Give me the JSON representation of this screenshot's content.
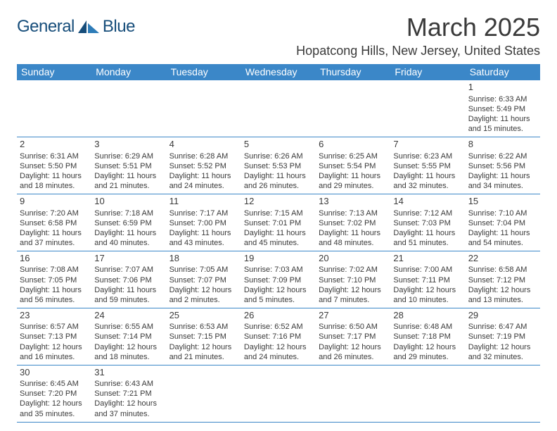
{
  "branding": {
    "logo_part1": "General",
    "logo_part2": "Blue"
  },
  "header": {
    "month_title": "March 2025",
    "location": "Hopatcong Hills, New Jersey, United States"
  },
  "colors": {
    "header_bar": "#3b87c8",
    "text": "#3a3a3a",
    "logo_dark": "#164d7a",
    "logo_mid": "#2e7cb8",
    "background": "#ffffff"
  },
  "weekdays": [
    "Sunday",
    "Monday",
    "Tuesday",
    "Wednesday",
    "Thursday",
    "Friday",
    "Saturday"
  ],
  "weeks": [
    [
      null,
      null,
      null,
      null,
      null,
      null,
      {
        "n": "1",
        "sr": "Sunrise: 6:33 AM",
        "ss": "Sunset: 5:49 PM",
        "d1": "Daylight: 11 hours",
        "d2": "and 15 minutes."
      }
    ],
    [
      {
        "n": "2",
        "sr": "Sunrise: 6:31 AM",
        "ss": "Sunset: 5:50 PM",
        "d1": "Daylight: 11 hours",
        "d2": "and 18 minutes."
      },
      {
        "n": "3",
        "sr": "Sunrise: 6:29 AM",
        "ss": "Sunset: 5:51 PM",
        "d1": "Daylight: 11 hours",
        "d2": "and 21 minutes."
      },
      {
        "n": "4",
        "sr": "Sunrise: 6:28 AM",
        "ss": "Sunset: 5:52 PM",
        "d1": "Daylight: 11 hours",
        "d2": "and 24 minutes."
      },
      {
        "n": "5",
        "sr": "Sunrise: 6:26 AM",
        "ss": "Sunset: 5:53 PM",
        "d1": "Daylight: 11 hours",
        "d2": "and 26 minutes."
      },
      {
        "n": "6",
        "sr": "Sunrise: 6:25 AM",
        "ss": "Sunset: 5:54 PM",
        "d1": "Daylight: 11 hours",
        "d2": "and 29 minutes."
      },
      {
        "n": "7",
        "sr": "Sunrise: 6:23 AM",
        "ss": "Sunset: 5:55 PM",
        "d1": "Daylight: 11 hours",
        "d2": "and 32 minutes."
      },
      {
        "n": "8",
        "sr": "Sunrise: 6:22 AM",
        "ss": "Sunset: 5:56 PM",
        "d1": "Daylight: 11 hours",
        "d2": "and 34 minutes."
      }
    ],
    [
      {
        "n": "9",
        "sr": "Sunrise: 7:20 AM",
        "ss": "Sunset: 6:58 PM",
        "d1": "Daylight: 11 hours",
        "d2": "and 37 minutes."
      },
      {
        "n": "10",
        "sr": "Sunrise: 7:18 AM",
        "ss": "Sunset: 6:59 PM",
        "d1": "Daylight: 11 hours",
        "d2": "and 40 minutes."
      },
      {
        "n": "11",
        "sr": "Sunrise: 7:17 AM",
        "ss": "Sunset: 7:00 PM",
        "d1": "Daylight: 11 hours",
        "d2": "and 43 minutes."
      },
      {
        "n": "12",
        "sr": "Sunrise: 7:15 AM",
        "ss": "Sunset: 7:01 PM",
        "d1": "Daylight: 11 hours",
        "d2": "and 45 minutes."
      },
      {
        "n": "13",
        "sr": "Sunrise: 7:13 AM",
        "ss": "Sunset: 7:02 PM",
        "d1": "Daylight: 11 hours",
        "d2": "and 48 minutes."
      },
      {
        "n": "14",
        "sr": "Sunrise: 7:12 AM",
        "ss": "Sunset: 7:03 PM",
        "d1": "Daylight: 11 hours",
        "d2": "and 51 minutes."
      },
      {
        "n": "15",
        "sr": "Sunrise: 7:10 AM",
        "ss": "Sunset: 7:04 PM",
        "d1": "Daylight: 11 hours",
        "d2": "and 54 minutes."
      }
    ],
    [
      {
        "n": "16",
        "sr": "Sunrise: 7:08 AM",
        "ss": "Sunset: 7:05 PM",
        "d1": "Daylight: 11 hours",
        "d2": "and 56 minutes."
      },
      {
        "n": "17",
        "sr": "Sunrise: 7:07 AM",
        "ss": "Sunset: 7:06 PM",
        "d1": "Daylight: 11 hours",
        "d2": "and 59 minutes."
      },
      {
        "n": "18",
        "sr": "Sunrise: 7:05 AM",
        "ss": "Sunset: 7:07 PM",
        "d1": "Daylight: 12 hours",
        "d2": "and 2 minutes."
      },
      {
        "n": "19",
        "sr": "Sunrise: 7:03 AM",
        "ss": "Sunset: 7:09 PM",
        "d1": "Daylight: 12 hours",
        "d2": "and 5 minutes."
      },
      {
        "n": "20",
        "sr": "Sunrise: 7:02 AM",
        "ss": "Sunset: 7:10 PM",
        "d1": "Daylight: 12 hours",
        "d2": "and 7 minutes."
      },
      {
        "n": "21",
        "sr": "Sunrise: 7:00 AM",
        "ss": "Sunset: 7:11 PM",
        "d1": "Daylight: 12 hours",
        "d2": "and 10 minutes."
      },
      {
        "n": "22",
        "sr": "Sunrise: 6:58 AM",
        "ss": "Sunset: 7:12 PM",
        "d1": "Daylight: 12 hours",
        "d2": "and 13 minutes."
      }
    ],
    [
      {
        "n": "23",
        "sr": "Sunrise: 6:57 AM",
        "ss": "Sunset: 7:13 PM",
        "d1": "Daylight: 12 hours",
        "d2": "and 16 minutes."
      },
      {
        "n": "24",
        "sr": "Sunrise: 6:55 AM",
        "ss": "Sunset: 7:14 PM",
        "d1": "Daylight: 12 hours",
        "d2": "and 18 minutes."
      },
      {
        "n": "25",
        "sr": "Sunrise: 6:53 AM",
        "ss": "Sunset: 7:15 PM",
        "d1": "Daylight: 12 hours",
        "d2": "and 21 minutes."
      },
      {
        "n": "26",
        "sr": "Sunrise: 6:52 AM",
        "ss": "Sunset: 7:16 PM",
        "d1": "Daylight: 12 hours",
        "d2": "and 24 minutes."
      },
      {
        "n": "27",
        "sr": "Sunrise: 6:50 AM",
        "ss": "Sunset: 7:17 PM",
        "d1": "Daylight: 12 hours",
        "d2": "and 26 minutes."
      },
      {
        "n": "28",
        "sr": "Sunrise: 6:48 AM",
        "ss": "Sunset: 7:18 PM",
        "d1": "Daylight: 12 hours",
        "d2": "and 29 minutes."
      },
      {
        "n": "29",
        "sr": "Sunrise: 6:47 AM",
        "ss": "Sunset: 7:19 PM",
        "d1": "Daylight: 12 hours",
        "d2": "and 32 minutes."
      }
    ],
    [
      {
        "n": "30",
        "sr": "Sunrise: 6:45 AM",
        "ss": "Sunset: 7:20 PM",
        "d1": "Daylight: 12 hours",
        "d2": "and 35 minutes."
      },
      {
        "n": "31",
        "sr": "Sunrise: 6:43 AM",
        "ss": "Sunset: 7:21 PM",
        "d1": "Daylight: 12 hours",
        "d2": "and 37 minutes."
      },
      null,
      null,
      null,
      null,
      null
    ]
  ]
}
